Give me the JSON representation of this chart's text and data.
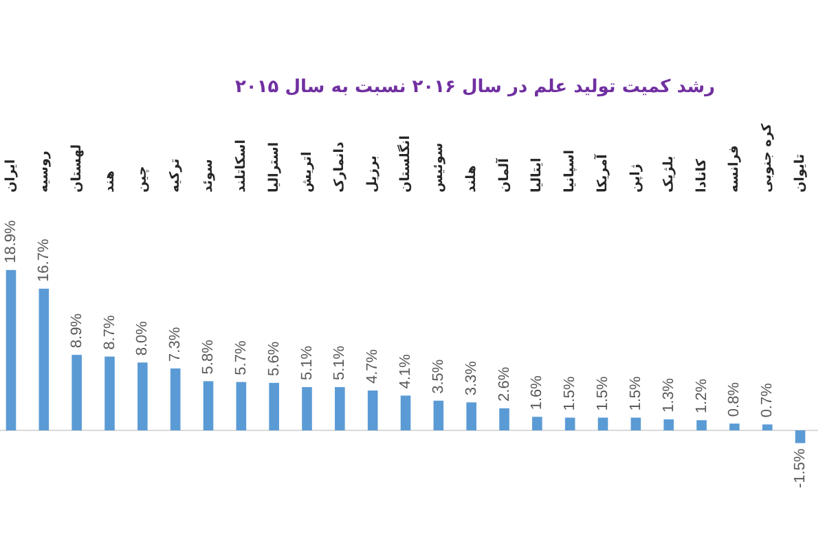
{
  "chart_data": {
    "type": "bar",
    "title": "رشد کمیت تولید علم در سال ۲۰۱۶ نسبت به سال ۲۰۱۵",
    "categories": [
      "ایران",
      "روسیه",
      "لهستان",
      "هند",
      "چین",
      "ترکیه",
      "سوئد",
      "اسکاتلند",
      "استرالیا",
      "اتریش",
      "دانمارک",
      "برزیل",
      "انگلستان",
      "سوئیس",
      "هلند",
      "آلمان",
      "ایتالیا",
      "اسپانیا",
      "آمریکا",
      "ژاپن",
      "بلژیک",
      "کانادا",
      "فرانسه",
      "کره جنوبی",
      "تایوان"
    ],
    "values": [
      18.9,
      16.7,
      8.9,
      8.7,
      8.0,
      7.3,
      5.8,
      5.7,
      5.6,
      5.1,
      5.1,
      4.7,
      4.1,
      3.5,
      3.3,
      2.6,
      1.6,
      1.5,
      1.5,
      1.5,
      1.3,
      1.2,
      0.8,
      0.7,
      -1.5
    ],
    "value_labels": [
      "18.9%",
      "16.7%",
      "8.9%",
      "8.7%",
      "8.0%",
      "7.3%",
      "5.8%",
      "5.7%",
      "5.6%",
      "5.1%",
      "5.1%",
      "4.7%",
      "4.1%",
      "3.5%",
      "3.3%",
      "2.6%",
      "1.6%",
      "1.5%",
      "1.5%",
      "1.5%",
      "1.3%",
      "1.2%",
      "0.8%",
      "0.7%",
      "-1.5%"
    ],
    "color": "#5b9bd5"
  }
}
